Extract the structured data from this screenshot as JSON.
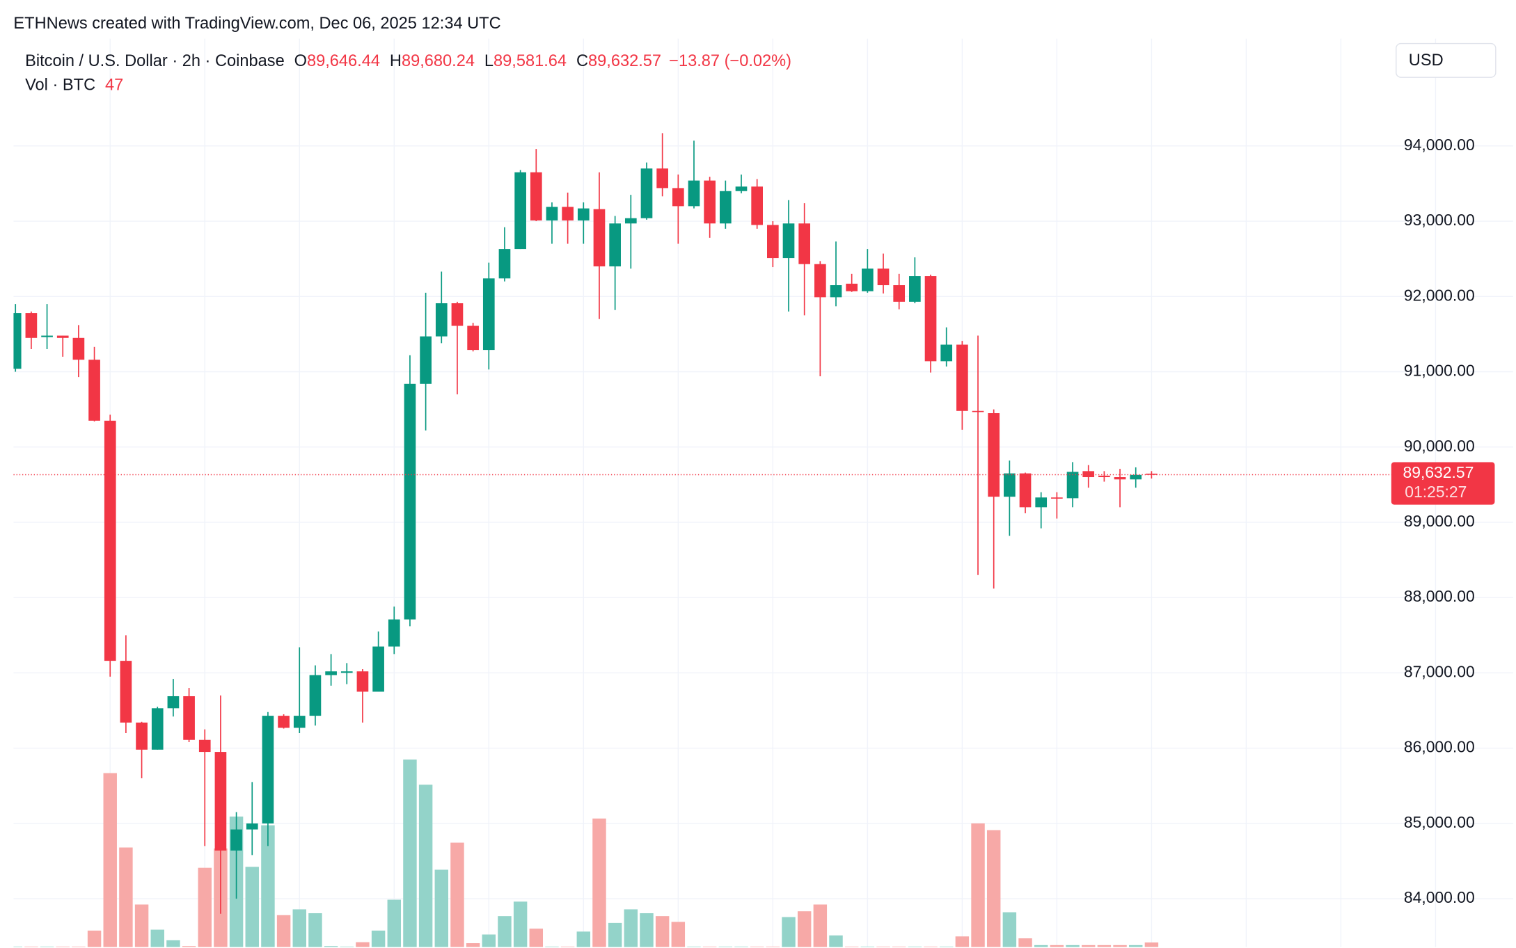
{
  "chart_data": {
    "type": "candlestick",
    "credit": "ETHNews created with TradingView.com, Dec 06, 2025 12:34 UTC",
    "title": "Bitcoin / U.S. Dollar · 2h · Coinbase",
    "ohlc_legend": [
      {
        "key": "O",
        "text": "89,646.44"
      },
      {
        "key": "H",
        "text": "89,680.24"
      },
      {
        "key": "L",
        "text": "89,581.64"
      },
      {
        "key": "C",
        "text": "89,632.57"
      }
    ],
    "change_label": "−13.87 (−0.02%)",
    "currency": "USD",
    "up_color": "#089981",
    "down_color": "#f23645",
    "open": [
      91040,
      91780,
      91460,
      91480,
      91450,
      91160,
      90350,
      87160,
      86340,
      85980,
      86530,
      86690,
      86110,
      85950,
      84640,
      84920,
      85000,
      86430,
      86270,
      86430,
      86970,
      87000,
      87020,
      86750,
      87350,
      87710,
      90840,
      91470,
      91910,
      91610,
      91290,
      92240,
      92630,
      93650,
      93010,
      93190,
      93010,
      93160,
      92400,
      92970,
      93040,
      93700,
      93440,
      93200,
      93540,
      92970,
      93400,
      93460,
      92950,
      92510,
      92970,
      92430,
      91990,
      92170,
      92070,
      92370,
      92150,
      91930,
      92270,
      91140,
      91360,
      90480,
      90450,
      89340,
      89650,
      89200,
      89330,
      89320,
      89680,
      89620,
      89600,
      89570,
      89646.44
    ],
    "high": [
      91900,
      91800,
      91900,
      91480,
      91620,
      91330,
      90430,
      87500,
      86350,
      86550,
      86920,
      86800,
      86250,
      86700,
      85150,
      85550,
      86480,
      86450,
      87340,
      87100,
      87250,
      87130,
      87050,
      87550,
      87880,
      91220,
      92050,
      92330,
      91930,
      91650,
      92450,
      92920,
      93680,
      93960,
      93250,
      93380,
      93250,
      93650,
      93070,
      93350,
      93780,
      94170,
      93620,
      94070,
      93590,
      93540,
      93620,
      93560,
      93000,
      93280,
      93240,
      92470,
      92730,
      92300,
      92630,
      92570,
      92300,
      92520,
      92290,
      91590,
      91410,
      91480,
      90500,
      89820,
      89660,
      89400,
      89400,
      89800,
      89760,
      89680,
      89710,
      89730,
      89680.24
    ],
    "low": [
      91000,
      91300,
      91300,
      91200,
      90930,
      90340,
      86950,
      86200,
      85600,
      85980,
      86420,
      86080,
      84700,
      83800,
      84000,
      84580,
      84700,
      86260,
      86200,
      86300,
      86830,
      86850,
      86340,
      86750,
      87250,
      87620,
      90220,
      91380,
      90700,
      91270,
      91030,
      92200,
      92630,
      93000,
      92700,
      92700,
      92700,
      91700,
      91820,
      92370,
      93020,
      93330,
      92700,
      93170,
      92780,
      92900,
      93370,
      92900,
      92390,
      91800,
      91750,
      90940,
      91870,
      92060,
      92050,
      92040,
      91830,
      91910,
      90990,
      91070,
      90230,
      88300,
      88120,
      88820,
      89120,
      88920,
      89050,
      89200,
      89460,
      89540,
      89200,
      89460,
      89581.64
    ],
    "close": [
      91780,
      91450,
      91480,
      91450,
      91160,
      90350,
      87160,
      86340,
      85980,
      86530,
      86690,
      86110,
      85950,
      84640,
      84920,
      85000,
      86430,
      86270,
      86430,
      86970,
      87020,
      87020,
      86750,
      87350,
      87710,
      90840,
      91470,
      91910,
      91610,
      91290,
      92240,
      92630,
      93650,
      93010,
      93190,
      93010,
      93170,
      92400,
      92970,
      93040,
      93700,
      93440,
      93200,
      93540,
      92970,
      93400,
      93460,
      92950,
      92510,
      92970,
      92430,
      91990,
      92150,
      92070,
      92370,
      92150,
      91930,
      92270,
      91140,
      91360,
      90480,
      90470,
      89340,
      89650,
      89200,
      89330,
      89320,
      89670,
      89600,
      89600,
      89570,
      89630,
      89632.57
    ],
    "volume": {
      "name": "Vol · BTC",
      "vlim": [
        0,
        9400
      ],
      "up_color": "#93d3c9",
      "down_color": "#f7a9a7",
      "values": [
        5,
        5,
        5,
        5,
        5,
        170,
        1800,
        1030,
        440,
        180,
        70,
        10,
        820,
        1020,
        1350,
        830,
        1260,
        330,
        390,
        350,
        10,
        5,
        50,
        170,
        490,
        1940,
        1680,
        800,
        1080,
        40,
        130,
        320,
        470,
        190,
        5,
        5,
        160,
        1330,
        250,
        390,
        350,
        320,
        260,
        5,
        5,
        5,
        5,
        5,
        5,
        310,
        370,
        440,
        120,
        5,
        5,
        5,
        5,
        5,
        5,
        5,
        110,
        1280,
        1210,
        360,
        90,
        20,
        20,
        20,
        20,
        20,
        20,
        20,
        47
      ]
    },
    "ylim": [
      83358,
      95425
    ],
    "yticks": [
      {
        "value": 84000,
        "label": "84,000.00"
      },
      {
        "value": 85000,
        "label": "85,000.00"
      },
      {
        "value": 86000,
        "label": "86,000.00"
      },
      {
        "value": 87000,
        "label": "87,000.00"
      },
      {
        "value": 88000,
        "label": "88,000.00"
      },
      {
        "value": 89000,
        "label": "89,000.00"
      },
      {
        "value": 90000,
        "label": "90,000.00"
      },
      {
        "value": 91000,
        "label": "91,000.00"
      },
      {
        "value": 92000,
        "label": "92,000.00"
      },
      {
        "value": 93000,
        "label": "93,000.00"
      },
      {
        "value": 94000,
        "label": "94,000.00"
      }
    ],
    "grid": true,
    "price_line": {
      "value": 89632.57,
      "label": "89,632.57",
      "countdown": "01:25:27"
    }
  }
}
